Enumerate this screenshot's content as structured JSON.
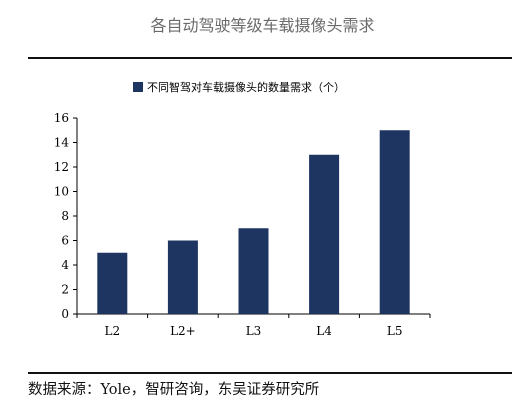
{
  "page": {
    "title": "各自动驾驶等级车载摄像头需求",
    "source": "数据来源：Yole，智研咨询，东吴证券研究所"
  },
  "colors": {
    "bar": "#1d3560",
    "axis": "#000000",
    "title": "#6b6b6b"
  },
  "chart_data": {
    "type": "bar",
    "categories": [
      "L2",
      "L2+",
      "L3",
      "L4",
      "L5"
    ],
    "series": [
      {
        "name": "不同智驾对车载摄像头的数量需求（个）",
        "values": [
          5,
          6,
          7,
          13,
          15
        ]
      }
    ],
    "yticks": [
      0,
      2,
      4,
      6,
      8,
      10,
      12,
      14,
      16
    ],
    "ylim": [
      0,
      16
    ],
    "xlabel": "",
    "ylabel": "",
    "grid": false,
    "legend_position": "top-center"
  }
}
